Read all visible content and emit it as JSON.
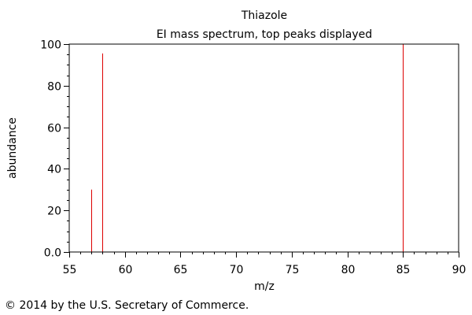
{
  "chart_data": {
    "type": "bar",
    "title": "Thiazole",
    "subtitle": "EI mass spectrum, top peaks displayed",
    "xlabel": "m/z",
    "ylabel": "abundance",
    "xlim": [
      55,
      90
    ],
    "ylim": [
      0,
      100
    ],
    "x_ticks": [
      "55",
      "60",
      "65",
      "70",
      "75",
      "80",
      "85",
      "90"
    ],
    "y_ticks": [
      "0.0",
      "20",
      "40",
      "60",
      "80",
      "100"
    ],
    "x_minor_step": 1,
    "y_minor_step": 5,
    "grid": false,
    "peak_color": "#dd0000",
    "peaks": [
      {
        "x": 57,
        "y": 30
      },
      {
        "x": 58,
        "y": 95.5
      },
      {
        "x": 85,
        "y": 100
      }
    ]
  },
  "footer": {
    "copyright": "© 2014 by the U.S. Secretary of Commerce."
  }
}
